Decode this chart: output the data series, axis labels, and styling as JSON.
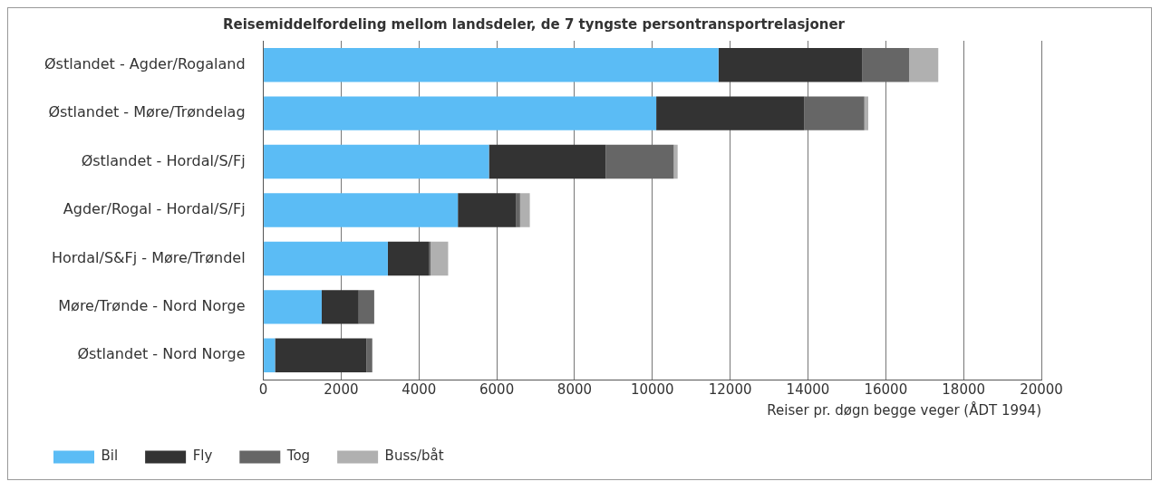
{
  "chart_data": {
    "type": "bar",
    "orientation": "horizontal",
    "stacked": true,
    "title": "Reisemiddelfordeling mellom landsdeler, de 7 tyngste persontransportrelasjoner",
    "xlabel": "Reiser pr. døgn begge veger (ÅDT 1994)",
    "categories": [
      "Østlandet - Agder/Rogaland",
      "Østlandet - Møre/Trøndelag",
      "Østlandet - Hordal/S/Fj",
      "Agder/Rogal - Hordal/S/Fj",
      "Hordal/S&Fj - Møre/Trøndel",
      "Møre/Trønde - Nord Norge",
      "Østlandet - Nord Norge"
    ],
    "series": [
      {
        "name": "Bil",
        "color": "#5bbcf5",
        "values": [
          11700,
          10100,
          5800,
          5000,
          3200,
          1500,
          300
        ]
      },
      {
        "name": "Fly",
        "color": "#333333",
        "values": [
          3700,
          3800,
          3000,
          1500,
          1050,
          950,
          2350
        ]
      },
      {
        "name": "Tog",
        "color": "#666666",
        "values": [
          1200,
          1550,
          1750,
          100,
          50,
          400,
          150
        ]
      },
      {
        "name": "Buss/båt",
        "color": "#b0b0b0",
        "values": [
          750,
          100,
          100,
          250,
          450,
          0,
          0
        ]
      }
    ],
    "xlim": [
      0,
      20000
    ],
    "xticks": [
      0,
      2000,
      4000,
      6000,
      8000,
      10000,
      12000,
      14000,
      16000,
      18000,
      20000
    ],
    "grid": "x",
    "legend": "bottom"
  }
}
